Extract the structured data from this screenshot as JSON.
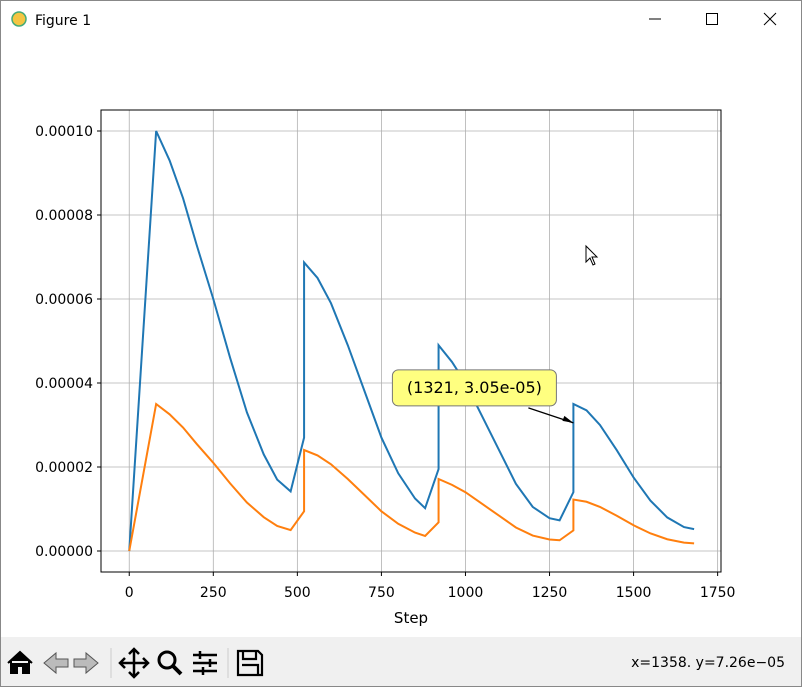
{
  "window": {
    "title": "Figure 1"
  },
  "chart_data": {
    "type": "line",
    "xlabel": "Step",
    "x": [
      0,
      80,
      120,
      160,
      200,
      250,
      300,
      350,
      400,
      440,
      480,
      520,
      520,
      560,
      600,
      650,
      700,
      750,
      800,
      850,
      880,
      920,
      920,
      960,
      1000,
      1050,
      1100,
      1150,
      1200,
      1250,
      1280,
      1321,
      1321,
      1360,
      1400,
      1450,
      1500,
      1550,
      1600,
      1650,
      1680
    ],
    "series": [
      {
        "color": "#1f77b4",
        "values": [
          0,
          0.0001,
          9.3e-05,
          8.4e-05,
          7.3e-05,
          6e-05,
          4.6e-05,
          3.3e-05,
          2.3e-05,
          1.7e-05,
          1.42e-05,
          2.7e-05,
          6.87e-05,
          6.5e-05,
          5.9e-05,
          4.9e-05,
          3.8e-05,
          2.7e-05,
          1.85e-05,
          1.25e-05,
          1.02e-05,
          1.95e-05,
          4.9e-05,
          4.5e-05,
          4e-05,
          3.2e-05,
          2.4e-05,
          1.6e-05,
          1.05e-05,
          7.8e-06,
          7.3e-06,
          1.4e-05,
          3.5e-05,
          3.35e-05,
          3e-05,
          2.4e-05,
          1.75e-05,
          1.2e-05,
          8e-06,
          5.7e-06,
          5.2e-06
        ]
      },
      {
        "color": "#ff7f0e",
        "values": [
          0,
          3.5e-05,
          3.255e-05,
          2.94e-05,
          2.555e-05,
          2.1e-05,
          1.61e-05,
          1.155e-05,
          8.05e-06,
          5.95e-06,
          4.97e-06,
          9.45e-06,
          2.4045e-05,
          2.275e-05,
          2.065e-05,
          1.715e-05,
          1.33e-05,
          9.45e-06,
          6.475e-06,
          4.375e-06,
          3.57e-06,
          6.825e-06,
          1.715e-05,
          1.575e-05,
          1.4e-05,
          1.12e-05,
          8.4e-06,
          5.6e-06,
          3.675e-06,
          2.73e-06,
          2.555e-06,
          4.9e-06,
          1.225e-05,
          1.1725e-05,
          1.05e-05,
          8.4e-06,
          6.125e-06,
          4.2e-06,
          2.8e-06,
          1.995e-06,
          1.82e-06
        ]
      }
    ],
    "xlim": [
      -84,
      1760
    ],
    "ylim": [
      -5e-06,
      0.000105
    ],
    "xticks": [
      0,
      250,
      500,
      750,
      1000,
      1250,
      1500,
      1750
    ],
    "yticks": [
      {
        "value": 0,
        "label": "0.00000"
      },
      {
        "value": 2e-05,
        "label": "0.00002"
      },
      {
        "value": 4e-05,
        "label": "0.00004"
      },
      {
        "value": 6e-05,
        "label": "0.00006"
      },
      {
        "value": 8e-05,
        "label": "0.00008"
      },
      {
        "value": 0.0001,
        "label": "0.00010"
      }
    ],
    "grid": true,
    "annotation": {
      "text": "(1321, 3.05e-05)",
      "x": 1321,
      "y": 3.05e-05
    }
  },
  "toolbar": {
    "status": "x=1358. y=7.26e−05"
  }
}
